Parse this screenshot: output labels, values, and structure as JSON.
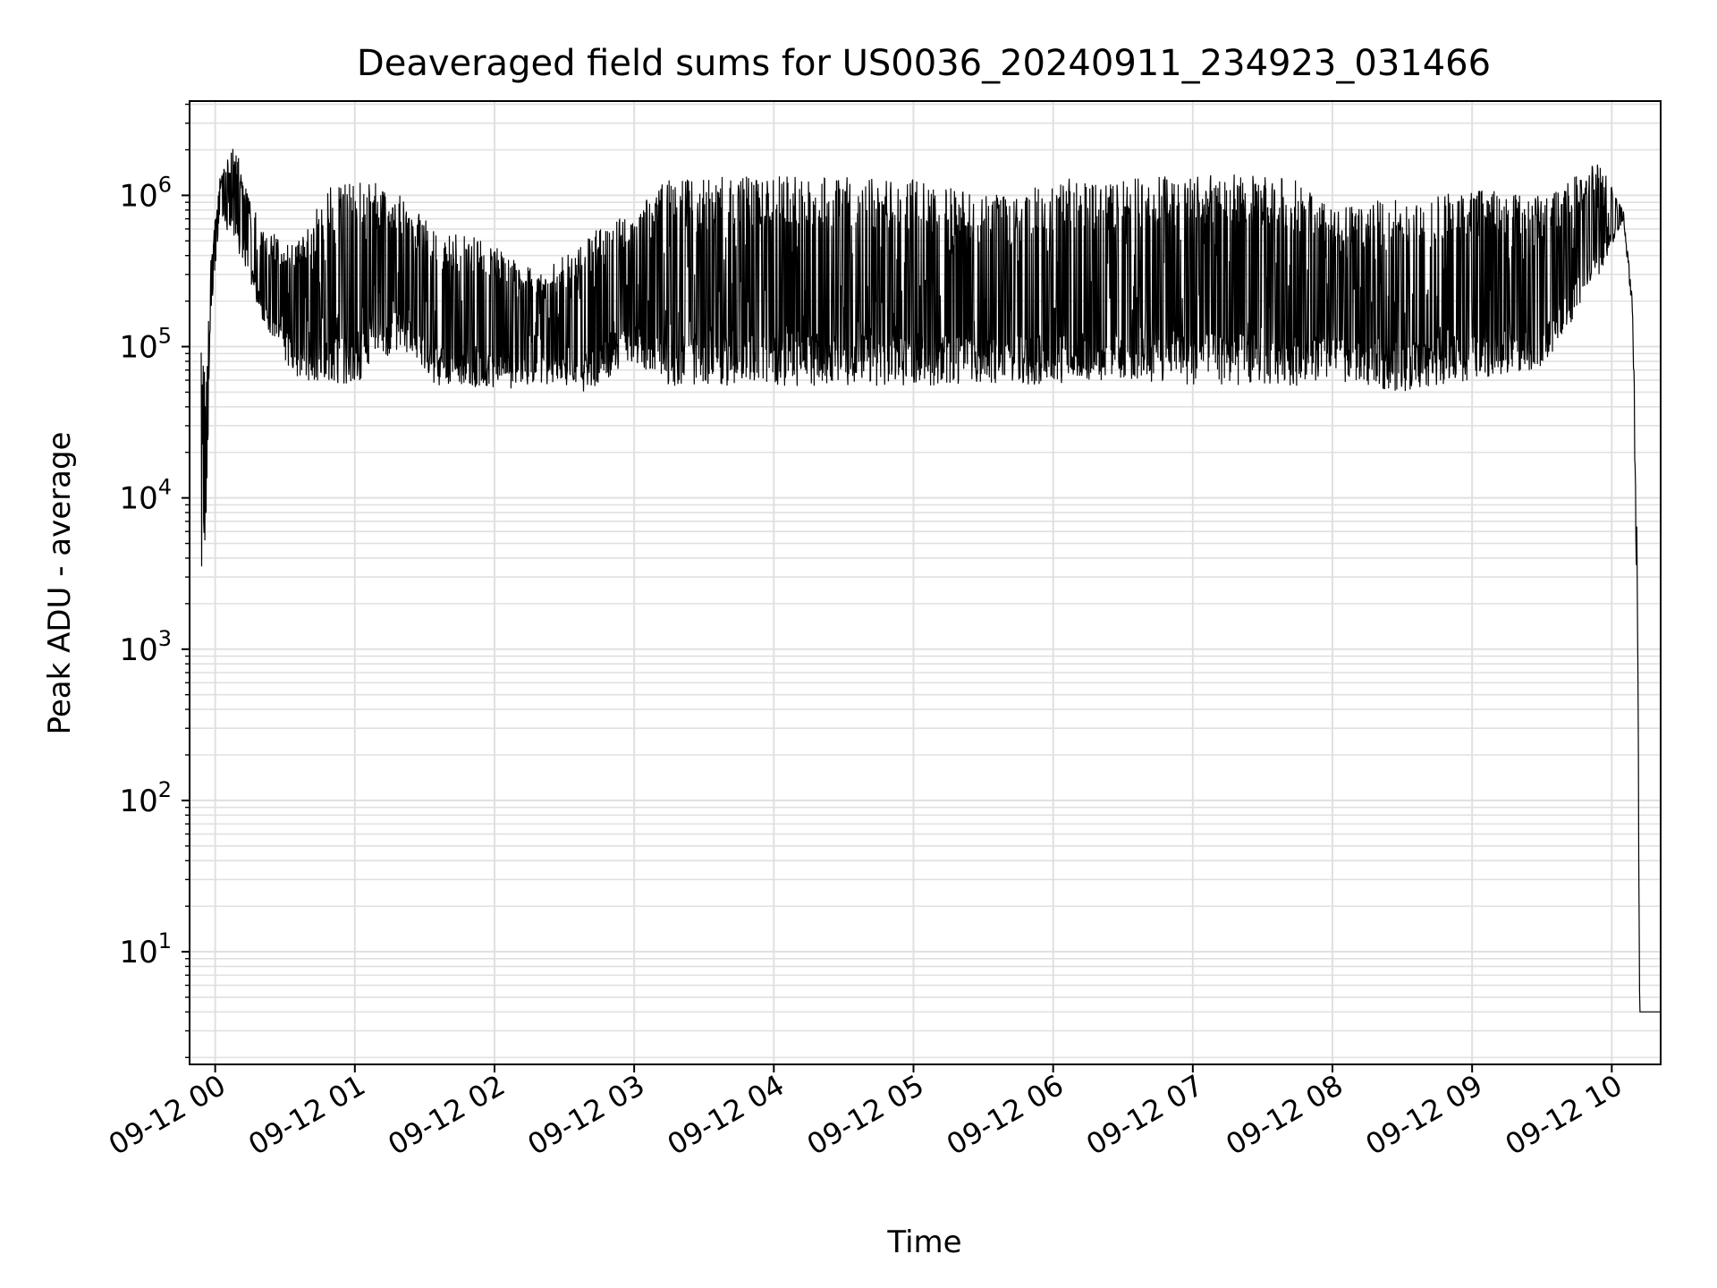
{
  "chart_data": {
    "type": "line",
    "title": "Deaveraged field sums for US0036_20240911_234923_031466",
    "xlabel": "Time",
    "ylabel": "Peak ADU - average",
    "yscale": "log",
    "ylim": [
      1.8,
      4200000
    ],
    "xlim": [
      "2024-09-11 23:49",
      "2024-09-12 10:21"
    ],
    "grid": true,
    "line_color": "#000000",
    "grid_color": "#e0e0e0",
    "x_ticks": [
      {
        "t": "2024-09-12 00:00",
        "label": "09-12 00"
      },
      {
        "t": "2024-09-12 01:00",
        "label": "09-12 01"
      },
      {
        "t": "2024-09-12 02:00",
        "label": "09-12 02"
      },
      {
        "t": "2024-09-12 03:00",
        "label": "09-12 03"
      },
      {
        "t": "2024-09-12 04:00",
        "label": "09-12 04"
      },
      {
        "t": "2024-09-12 05:00",
        "label": "09-12 05"
      },
      {
        "t": "2024-09-12 06:00",
        "label": "09-12 06"
      },
      {
        "t": "2024-09-12 07:00",
        "label": "09-12 07"
      },
      {
        "t": "2024-09-12 08:00",
        "label": "09-12 08"
      },
      {
        "t": "2024-09-12 09:00",
        "label": "09-12 09"
      },
      {
        "t": "2024-09-12 10:00",
        "label": "09-12 10"
      }
    ],
    "y_ticks": [
      {
        "value": 10,
        "base": "10",
        "exp": "1"
      },
      {
        "value": 100,
        "base": "10",
        "exp": "2"
      },
      {
        "value": 1000,
        "base": "10",
        "exp": "3"
      },
      {
        "value": 10000,
        "base": "10",
        "exp": "4"
      },
      {
        "value": 100000,
        "base": "10",
        "exp": "5"
      },
      {
        "value": 1000000,
        "base": "10",
        "exp": "6"
      }
    ],
    "series": [
      {
        "style": "dense-oscillating",
        "envelope": [
          {
            "t": "2024-09-11 23:54",
            "low": 3000,
            "high": 95000
          },
          {
            "t": "2024-09-11 23:56",
            "low": 5000,
            "high": 60000
          },
          {
            "t": "2024-09-11 23:58",
            "low": 150000,
            "high": 400000
          },
          {
            "t": "2024-09-12 00:02",
            "low": 700000,
            "high": 1300000
          },
          {
            "t": "2024-09-12 00:08",
            "low": 500000,
            "high": 2200000
          },
          {
            "t": "2024-09-12 00:20",
            "low": 150000,
            "high": 600000
          },
          {
            "t": "2024-09-12 00:35",
            "low": 60000,
            "high": 500000
          },
          {
            "t": "2024-09-12 00:50",
            "low": 55000,
            "high": 1200000
          },
          {
            "t": "2024-09-12 01:05",
            "low": 60000,
            "high": 1300000
          },
          {
            "t": "2024-09-12 01:20",
            "low": 100000,
            "high": 1000000
          },
          {
            "t": "2024-09-12 01:35",
            "low": 55000,
            "high": 600000
          },
          {
            "t": "2024-09-12 02:00",
            "low": 50000,
            "high": 500000
          },
          {
            "t": "2024-09-12 02:20",
            "low": 55000,
            "high": 300000
          },
          {
            "t": "2024-09-12 02:40",
            "low": 50000,
            "high": 550000
          },
          {
            "t": "2024-09-12 03:00",
            "low": 80000,
            "high": 800000
          },
          {
            "t": "2024-09-12 03:15",
            "low": 55000,
            "high": 1300000
          },
          {
            "t": "2024-09-12 04:00",
            "low": 55000,
            "high": 1350000
          },
          {
            "t": "2024-09-12 05:00",
            "low": 55000,
            "high": 1300000
          },
          {
            "t": "2024-09-12 05:30",
            "low": 55000,
            "high": 1000000
          },
          {
            "t": "2024-09-12 06:00",
            "low": 55000,
            "high": 1300000
          },
          {
            "t": "2024-09-12 06:30",
            "low": 60000,
            "high": 1300000
          },
          {
            "t": "2024-09-12 07:00",
            "low": 55000,
            "high": 1450000
          },
          {
            "t": "2024-09-12 07:45",
            "low": 55000,
            "high": 1300000
          },
          {
            "t": "2024-09-12 08:00",
            "low": 60000,
            "high": 800000
          },
          {
            "t": "2024-09-12 08:30",
            "low": 50000,
            "high": 1000000
          },
          {
            "t": "2024-09-12 09:00",
            "low": 60000,
            "high": 1100000
          },
          {
            "t": "2024-09-12 09:30",
            "low": 70000,
            "high": 1000000
          },
          {
            "t": "2024-09-12 09:55",
            "low": 300000,
            "high": 1700000
          },
          {
            "t": "2024-09-12 10:05",
            "low": 700000,
            "high": 800000
          },
          {
            "t": "2024-09-12 10:09",
            "low": 150000,
            "high": 200000
          },
          {
            "t": "2024-09-12 10:11",
            "low": 1000,
            "high": 5000
          },
          {
            "t": "2024-09-12 10:12",
            "low": 4,
            "high": 4
          },
          {
            "t": "2024-09-12 10:21",
            "low": 4,
            "high": 4
          }
        ]
      }
    ]
  }
}
